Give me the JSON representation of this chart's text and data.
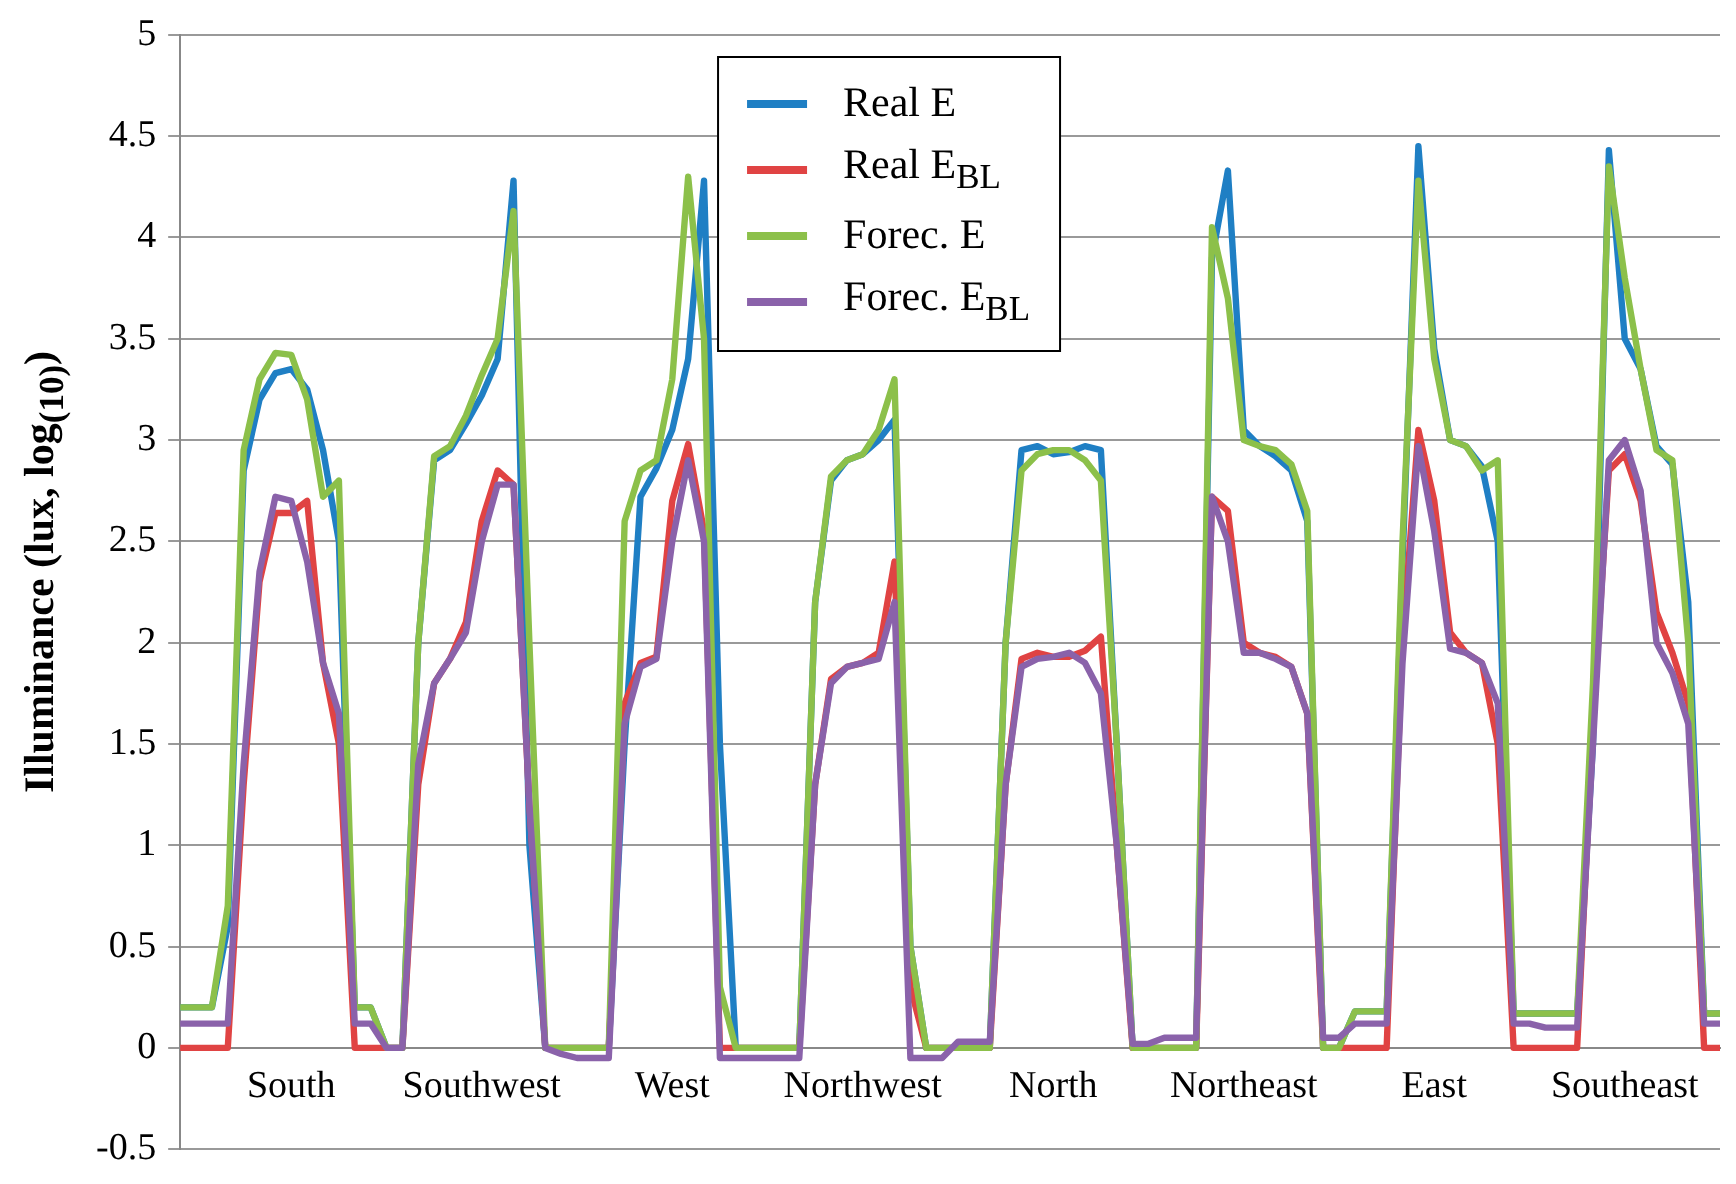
{
  "chart_data": {
    "type": "line",
    "ylabel": "Illuminance (lux, log$_{(10)}$)",
    "categories": [
      null,
      null,
      null,
      null,
      null,
      null,
      null,
      "South",
      null,
      null,
      null,
      null,
      null,
      null,
      null,
      null,
      null,
      null,
      null,
      "Southwest",
      null,
      null,
      null,
      null,
      null,
      null,
      null,
      null,
      null,
      null,
      null,
      "West",
      null,
      null,
      null,
      null,
      null,
      null,
      null,
      null,
      null,
      null,
      null,
      "Northwest",
      null,
      null,
      null,
      null,
      null,
      null,
      null,
      null,
      null,
      null,
      null,
      "North",
      null,
      null,
      null,
      null,
      null,
      null,
      null,
      null,
      null,
      null,
      null,
      "Northeast",
      null,
      null,
      null,
      null,
      null,
      null,
      null,
      null,
      null,
      null,
      null,
      "East",
      null,
      null,
      null,
      null,
      null,
      null,
      null,
      null,
      null,
      null,
      null,
      "Southeast",
      null,
      null,
      null,
      null,
      null,
      null
    ],
    "series": [
      {
        "name": "Real E",
        "color": "#1f7fc4",
        "values": [
          0.2,
          0.2,
          0.2,
          0.6,
          2.85,
          3.2,
          3.33,
          3.35,
          3.25,
          2.95,
          2.5,
          0.2,
          0.2,
          0,
          0,
          2.0,
          2.9,
          2.95,
          3.08,
          3.22,
          3.4,
          4.28,
          1.0,
          0,
          0,
          0,
          0,
          0,
          1.5,
          2.72,
          2.86,
          3.05,
          3.4,
          4.28,
          1.5,
          0,
          0,
          0,
          0,
          0,
          2.2,
          2.8,
          2.9,
          2.93,
          3.0,
          3.1,
          0.5,
          0,
          0,
          0,
          0,
          0,
          2.0,
          2.95,
          2.97,
          2.93,
          2.94,
          2.97,
          2.95,
          1.5,
          0,
          0,
          0,
          0,
          0,
          3.9,
          4.33,
          3.05,
          2.97,
          2.92,
          2.85,
          2.6,
          0,
          0,
          0.18,
          0.18,
          0.18,
          2.4,
          4.45,
          3.45,
          3.0,
          2.97,
          2.87,
          2.5,
          0.17,
          0.17,
          0.17,
          0.17,
          0.17,
          1.5,
          4.43,
          3.5,
          3.35,
          2.97,
          2.88,
          2.2,
          0.17,
          0.17
        ]
      },
      {
        "name": "Real E$_{BL}$",
        "color": "#e04343",
        "values": [
          0,
          0,
          0,
          0,
          1.3,
          2.3,
          2.64,
          2.64,
          2.7,
          1.9,
          1.5,
          0,
          0,
          0,
          0,
          1.3,
          1.8,
          1.92,
          2.1,
          2.6,
          2.85,
          2.78,
          1.2,
          0,
          0,
          0,
          0,
          0,
          1.7,
          1.9,
          1.93,
          2.7,
          2.98,
          2.55,
          0,
          0,
          0,
          0,
          0,
          0,
          1.3,
          1.82,
          1.88,
          1.9,
          1.95,
          2.4,
          0.3,
          0,
          0,
          0,
          0,
          0,
          1.3,
          1.92,
          1.95,
          1.93,
          1.93,
          1.96,
          2.03,
          1.0,
          0,
          0,
          0,
          0,
          0,
          2.72,
          2.65,
          2.0,
          1.95,
          1.93,
          1.88,
          1.65,
          0,
          0,
          0,
          0,
          0,
          2.0,
          3.05,
          2.7,
          2.05,
          1.95,
          1.9,
          1.5,
          0,
          0,
          0,
          0,
          0,
          1.6,
          2.85,
          2.93,
          2.7,
          2.15,
          1.95,
          1.7,
          0,
          0
        ]
      },
      {
        "name": "Forec. E",
        "color": "#8cc04a",
        "values": [
          0.2,
          0.2,
          0.2,
          0.7,
          2.95,
          3.3,
          3.43,
          3.42,
          3.2,
          2.72,
          2.8,
          0.2,
          0.2,
          0,
          0,
          2.0,
          2.92,
          2.97,
          3.12,
          3.32,
          3.5,
          4.13,
          2.0,
          0,
          0,
          0,
          0,
          0,
          2.6,
          2.85,
          2.9,
          3.3,
          4.3,
          3.5,
          0.3,
          0,
          0,
          0,
          0,
          0,
          2.2,
          2.82,
          2.9,
          2.93,
          3.05,
          3.3,
          0.5,
          0,
          0,
          0,
          0,
          0,
          2.0,
          2.85,
          2.93,
          2.95,
          2.95,
          2.9,
          2.8,
          1.5,
          0,
          0,
          0,
          0,
          0,
          4.05,
          3.7,
          3.0,
          2.97,
          2.95,
          2.88,
          2.65,
          0,
          0,
          0.18,
          0.18,
          0.18,
          2.5,
          4.28,
          3.4,
          3.0,
          2.97,
          2.85,
          2.9,
          0.17,
          0.17,
          0.17,
          0.17,
          0.17,
          1.8,
          4.35,
          3.8,
          3.35,
          2.95,
          2.9,
          2.0,
          0.17,
          0.17
        ]
      },
      {
        "name": "Forec. E$_{BL}$",
        "color": "#8a62aa",
        "values": [
          0.12,
          0.12,
          0.12,
          0.12,
          1.4,
          2.35,
          2.72,
          2.7,
          2.4,
          1.9,
          1.65,
          0.12,
          0.12,
          0,
          0,
          1.4,
          1.8,
          1.92,
          2.05,
          2.5,
          2.78,
          2.78,
          1.2,
          0,
          -0.03,
          -0.05,
          -0.05,
          -0.05,
          1.6,
          1.88,
          1.92,
          2.5,
          2.9,
          2.5,
          -0.05,
          -0.05,
          -0.05,
          -0.05,
          -0.05,
          -0.05,
          1.3,
          1.8,
          1.88,
          1.9,
          1.92,
          2.2,
          -0.05,
          -0.05,
          -0.05,
          0.03,
          0.03,
          0.03,
          1.3,
          1.88,
          1.92,
          1.93,
          1.95,
          1.9,
          1.75,
          1.0,
          0.02,
          0.02,
          0.05,
          0.05,
          0.05,
          2.72,
          2.5,
          1.95,
          1.95,
          1.92,
          1.88,
          1.65,
          0.05,
          0.05,
          0.12,
          0.12,
          0.12,
          1.9,
          2.97,
          2.55,
          1.97,
          1.95,
          1.9,
          1.7,
          0.12,
          0.12,
          0.1,
          0.1,
          0.1,
          1.5,
          2.9,
          3.0,
          2.75,
          2.0,
          1.85,
          1.6,
          0.12,
          0.12
        ]
      }
    ],
    "ylim": [
      -0.5,
      5
    ],
    "yticks": [
      -0.5,
      0,
      0.5,
      1,
      1.5,
      2,
      2.5,
      3,
      3.5,
      4,
      4.5,
      5
    ],
    "grid": "y",
    "legend": "top",
    "marker": "none",
    "line_style": "solid"
  }
}
